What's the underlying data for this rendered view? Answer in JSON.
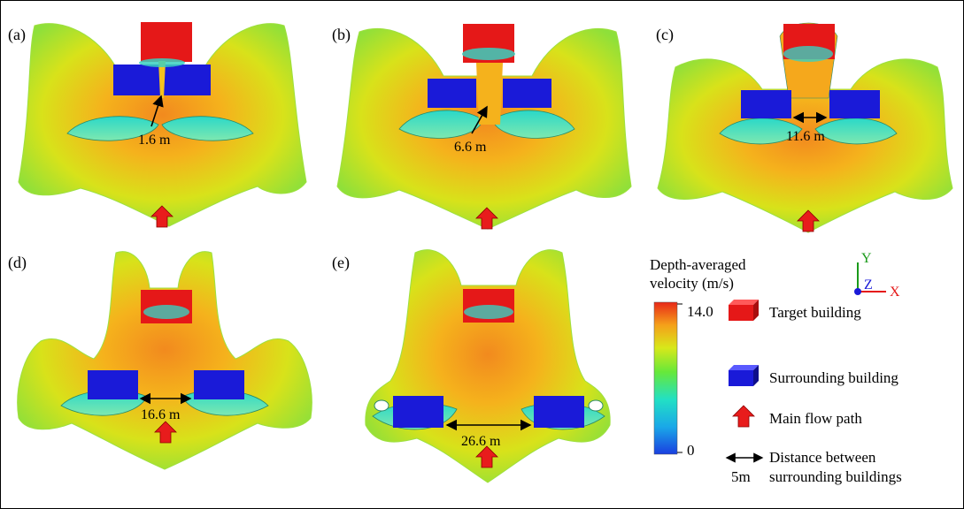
{
  "panels": [
    {
      "label": "(a)",
      "gap": "1.6 m"
    },
    {
      "label": "(b)",
      "gap": "6.6 m"
    },
    {
      "label": "(c)",
      "gap": "11.6 m"
    },
    {
      "label": "(d)",
      "gap": "16.6 m"
    },
    {
      "label": "(e)",
      "gap": "26.6 m"
    }
  ],
  "colorbar": {
    "title_line1": "Depth-averaged",
    "title_line2": "velocity (m/s)",
    "max_label": "14.0",
    "min_label": "0",
    "max": 14.0,
    "min": 0
  },
  "axes": {
    "y": "Y",
    "z": "Z",
    "x": "X"
  },
  "legend": {
    "target": "Target building",
    "surrounding": "Surrounding building",
    "flow": "Main flow path",
    "distance_line1": "Distance between",
    "distance_line2": "surrounding buildings",
    "scale": "5m"
  },
  "colors": {
    "target": "#e51818",
    "surrounding": "#1a1ad8",
    "arrow": "#e81c1c",
    "axis_y": "#1a9a1a",
    "axis_z": "#1a1ad8",
    "axis_x": "#e51818"
  }
}
